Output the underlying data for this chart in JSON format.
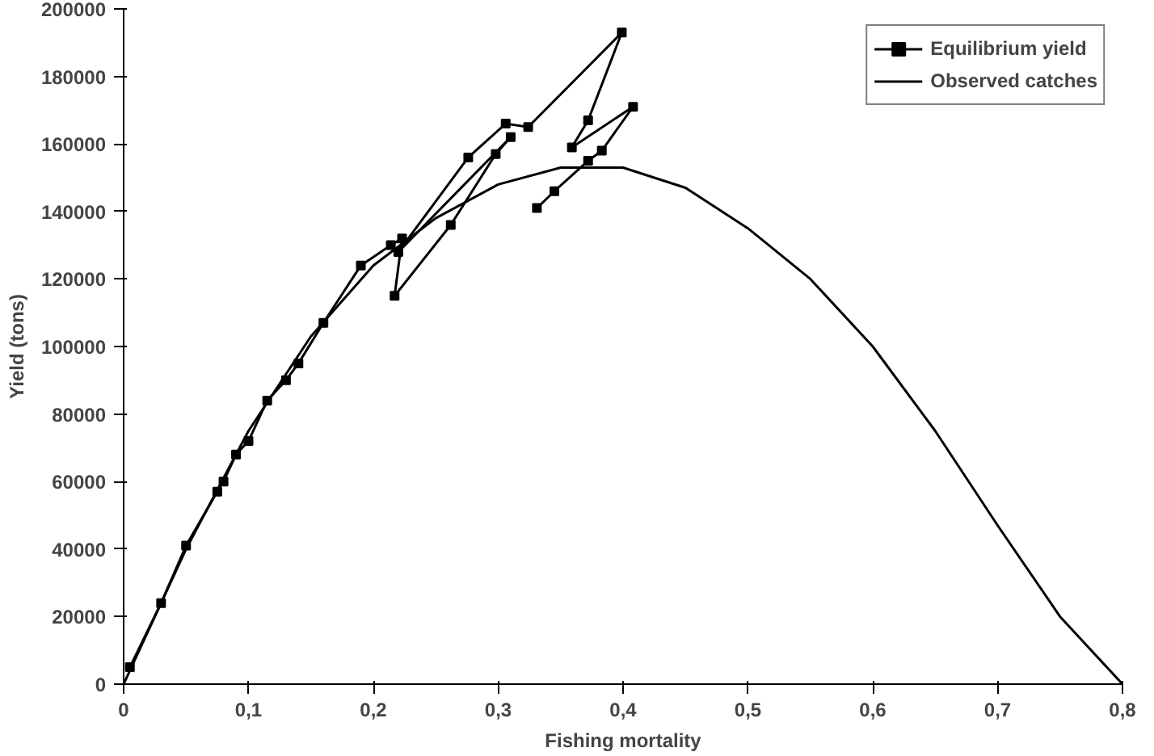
{
  "chart_data": {
    "type": "line",
    "xlabel": "Fishing mortality",
    "ylabel": "Yield (tons)",
    "xlim": [
      0,
      0.8
    ],
    "ylim": [
      0,
      200000
    ],
    "xticks": [
      {
        "value": 0,
        "label": "0"
      },
      {
        "value": 0.1,
        "label": "0,1"
      },
      {
        "value": 0.2,
        "label": "0,2"
      },
      {
        "value": 0.3,
        "label": "0,3"
      },
      {
        "value": 0.4,
        "label": "0,4"
      },
      {
        "value": 0.5,
        "label": "0,5"
      },
      {
        "value": 0.6,
        "label": "0,6"
      },
      {
        "value": 0.7,
        "label": "0,7"
      },
      {
        "value": 0.8,
        "label": "0,8"
      }
    ],
    "yticks": [
      0,
      20000,
      40000,
      60000,
      80000,
      100000,
      120000,
      140000,
      160000,
      180000,
      200000
    ],
    "grid": false,
    "legend": "top right",
    "series": [
      {
        "name": "Equilibrium yield",
        "color": "#000000",
        "marker": "square",
        "x": [
          0.005,
          0.03,
          0.05,
          0.075,
          0.08,
          0.09,
          0.1,
          0.115,
          0.13,
          0.14,
          0.16,
          0.19,
          0.214,
          0.223,
          0.217,
          0.262,
          0.298,
          0.31,
          0.22,
          0.276,
          0.306,
          0.324,
          0.399,
          0.372,
          0.359,
          0.408,
          0.383,
          0.372,
          0.345,
          0.331
        ],
        "values": [
          5000,
          24000,
          41000,
          57000,
          60000,
          68000,
          72000,
          84000,
          90000,
          95000,
          107000,
          124000,
          130000,
          132000,
          115000,
          136000,
          157000,
          162000,
          128000,
          156000,
          166000,
          165000,
          193000,
          167000,
          159000,
          171000,
          158000,
          155000,
          146000,
          141000
        ]
      },
      {
        "name": "Observed catches",
        "color": "#000000",
        "marker": "none",
        "x": [
          0,
          0.05,
          0.1,
          0.15,
          0.2,
          0.25,
          0.3,
          0.35,
          0.4,
          0.45,
          0.5,
          0.55,
          0.6,
          0.65,
          0.7,
          0.75,
          0.8
        ],
        "values": [
          0,
          40000,
          75000,
          103000,
          124000,
          138000,
          148000,
          153000,
          153000,
          147000,
          135000,
          120000,
          100000,
          75000,
          47000,
          20000,
          0
        ]
      }
    ]
  }
}
